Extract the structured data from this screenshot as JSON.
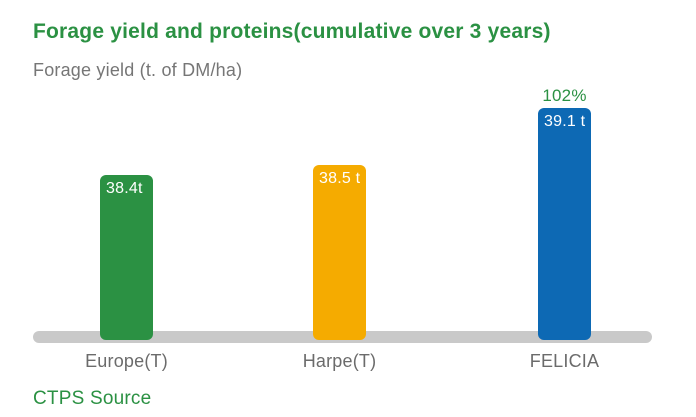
{
  "title": "Forage yield and proteins(cumulative over 3 years)",
  "subtitle": "Forage yield (t. of DM/ha)",
  "source": "CTPS Source",
  "colors": {
    "accent_green": "#2b9143",
    "bar_green": "#2b9143",
    "bar_amber": "#f5ab00",
    "bar_blue": "#0d69b4",
    "axis_gray": "#c9c9c9",
    "tick_label_gray": "#6b6b6b"
  },
  "chart_data": {
    "type": "bar",
    "title": "Forage yield and proteins(cumulative over 3 years)",
    "ylabel": "Forage yield (t. of DM/ha)",
    "categories": [
      "Europe(T)",
      "Harpe(T)",
      "FELICIA"
    ],
    "values": [
      38.4,
      38.5,
      39.1
    ],
    "value_labels": [
      "38.4t",
      "38.5 t",
      "39.1 t"
    ],
    "unit": "t of DM/ha",
    "bar_colors": [
      "#2b9143",
      "#f5ab00",
      "#0d69b4"
    ],
    "annotations": [
      {
        "index": 2,
        "category": "FELICIA",
        "text": "102%",
        "color": "#2b9143"
      }
    ],
    "grid": false,
    "y_axis_visible": false,
    "legend": "none",
    "source_note": "CTPS Source"
  }
}
